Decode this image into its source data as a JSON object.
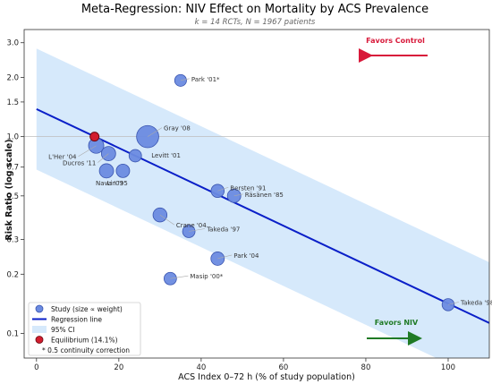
{
  "chart_data": {
    "type": "scatter",
    "title": "Meta-Regression: NIV Effect on Mortality by ACS Prevalence",
    "subtitle": "k = 14 RCTs, N = 1967 patients",
    "xlabel": "ACS Index 0–72 h (% of study population)",
    "ylabel": "Risk Ratio (log scale)",
    "xlim": [
      -3,
      110
    ],
    "ylim": [
      0.075,
      3.5
    ],
    "x_ticks": [
      0,
      20,
      40,
      60,
      80,
      100
    ],
    "y_ticks": [
      0.1,
      0.2,
      0.3,
      0.5,
      0.7,
      1.0,
      1.5,
      2.0,
      3.0
    ],
    "y_tick_labels": [
      "0.1",
      "0.2",
      "0.3",
      "0.5",
      "0.7",
      "1.0",
      "1.5",
      "2.0",
      "3.0"
    ],
    "y_scale": "log",
    "grid": false,
    "reference_line_y": 1.0,
    "points": [
      {
        "label": "Park '01*",
        "x": 35,
        "y": 1.93,
        "weight": 1
      },
      {
        "label": "Gray '08",
        "x": 27,
        "y": 1.0,
        "weight": 6
      },
      {
        "label": "L'Her '04",
        "x": 14.5,
        "y": 0.9,
        "weight": 2.2
      },
      {
        "label": "Ducros '11",
        "x": 17.5,
        "y": 0.82,
        "weight": 1.8
      },
      {
        "label": "Levitt '01",
        "x": 24,
        "y": 0.8,
        "weight": 1.2
      },
      {
        "label": "Nava '03",
        "x": 17,
        "y": 0.67,
        "weight": 1.8
      },
      {
        "label": "Lin '95",
        "x": 21,
        "y": 0.67,
        "weight": 1.5
      },
      {
        "label": "Bersten '91",
        "x": 44,
        "y": 0.53,
        "weight": 1.4
      },
      {
        "label": "Räsänen '85",
        "x": 48,
        "y": 0.5,
        "weight": 1.5
      },
      {
        "label": "Crane '04",
        "x": 30,
        "y": 0.4,
        "weight": 1.7
      },
      {
        "label": "Takeda '97",
        "x": 37,
        "y": 0.33,
        "weight": 1.2
      },
      {
        "label": "Park '04",
        "x": 44,
        "y": 0.24,
        "weight": 1.5
      },
      {
        "label": "Masip '00*",
        "x": 32.5,
        "y": 0.19,
        "weight": 1.2
      },
      {
        "label": "Takeda '98",
        "x": 100,
        "y": 0.14,
        "weight": 1.1
      }
    ],
    "equilibrium": {
      "x": 14.1,
      "y": 1.0,
      "label": "Equilibrium (14.1%)"
    },
    "regression": {
      "x": [
        0,
        110
      ],
      "y": [
        1.38,
        0.113
      ]
    },
    "ci": {
      "x": [
        0,
        110
      ],
      "lower": [
        0.68,
        0.056
      ],
      "upper": [
        2.8,
        0.23
      ]
    },
    "annotations": {
      "favors_control": "Favors Control",
      "favors_niv": "Favors NIV"
    },
    "legend": {
      "placement": "lower-left",
      "entries": [
        "Study (size ∝ weight)",
        "Regression line",
        "95% CI",
        "Equilibrium (14.1%)",
        "* 0.5 continuity correction"
      ]
    },
    "colors": {
      "study": "#6b8be0",
      "study_edge": "#3a55b0",
      "regression": "#0a1fc8",
      "ci_fill": "#d6e9fb",
      "equilibrium": "#d21d2e",
      "favors_control": "#d8193a",
      "favors_niv": "#1f7a25"
    }
  }
}
